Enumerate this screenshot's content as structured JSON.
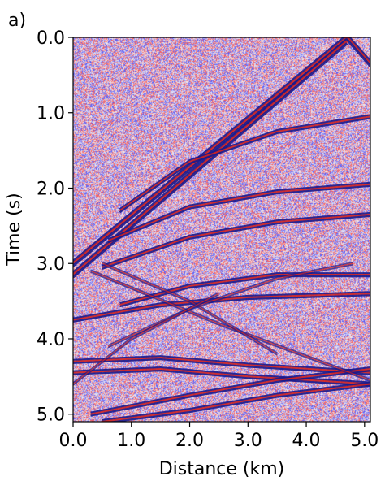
{
  "chart_data": {
    "type": "heatmap",
    "panel_label": "a)",
    "title": "",
    "xlabel": "Distance (km)",
    "ylabel": "Time (s)",
    "xlim": [
      0.0,
      5.1
    ],
    "ylim": [
      5.1,
      0.0
    ],
    "y_inverted": true,
    "x_ticks": [
      0.0,
      1.0,
      2.0,
      3.0,
      4.0,
      5.0
    ],
    "x_tick_labels": [
      "0.0",
      "1.0",
      "2.0",
      "3.0",
      "4.0",
      "5.0"
    ],
    "y_ticks": [
      0.0,
      1.0,
      2.0,
      3.0,
      4.0,
      5.0
    ],
    "y_tick_labels": [
      "0.0",
      "1.0",
      "2.0",
      "3.0",
      "4.0",
      "5.0"
    ],
    "colormap": "seismic",
    "colors": {
      "positive": "#cc2222",
      "negative": "#1a1a8c",
      "zero": "#f2eeee"
    },
    "events": [
      {
        "kind": "direct-arrival",
        "x": [
          0.0,
          4.7,
          5.1
        ],
        "y": [
          3.0,
          0.0,
          0.35
        ]
      },
      {
        "kind": "refraction",
        "x": [
          0.0,
          4.7
        ],
        "y": [
          3.15,
          0.05
        ]
      },
      {
        "kind": "reflection",
        "x": [
          0.8,
          2.0,
          3.5,
          5.1
        ],
        "y": [
          2.3,
          1.65,
          1.25,
          1.05
        ]
      },
      {
        "kind": "reflection",
        "x": [
          0.6,
          2.0,
          3.5,
          5.1
        ],
        "y": [
          2.7,
          2.25,
          2.05,
          1.95
        ]
      },
      {
        "kind": "reflection",
        "x": [
          0.5,
          2.0,
          3.5,
          5.1
        ],
        "y": [
          3.05,
          2.65,
          2.45,
          2.35
        ]
      },
      {
        "kind": "reflection",
        "x": [
          0.8,
          2.0,
          3.5,
          5.1
        ],
        "y": [
          3.55,
          3.3,
          3.15,
          3.15
        ]
      },
      {
        "kind": "reflection",
        "x": [
          0.0,
          1.5,
          3.0,
          5.1
        ],
        "y": [
          3.75,
          3.55,
          3.45,
          3.4
        ]
      },
      {
        "kind": "reflection",
        "x": [
          0.0,
          1.5,
          3.0,
          5.1
        ],
        "y": [
          4.3,
          4.25,
          4.35,
          4.45
        ]
      },
      {
        "kind": "reflection",
        "x": [
          0.0,
          1.5,
          3.0,
          5.1
        ],
        "y": [
          4.45,
          4.4,
          4.5,
          4.6
        ]
      },
      {
        "kind": "reflection",
        "x": [
          0.3,
          2.0,
          3.5,
          5.1
        ],
        "y": [
          5.0,
          4.75,
          4.55,
          4.4
        ]
      },
      {
        "kind": "reflection",
        "x": [
          0.5,
          2.0,
          3.5,
          5.1
        ],
        "y": [
          5.1,
          4.95,
          4.75,
          4.6
        ]
      },
      {
        "kind": "diffraction",
        "x": [
          0.3,
          2.5,
          5.1
        ],
        "y": [
          3.1,
          3.8,
          4.55
        ]
      },
      {
        "kind": "diffraction",
        "x": [
          0.5,
          2.0,
          3.5
        ],
        "y": [
          3.0,
          3.5,
          4.2
        ]
      },
      {
        "kind": "diffraction",
        "x": [
          0.6,
          2.0,
          3.5,
          4.8
        ],
        "y": [
          4.1,
          3.6,
          3.2,
          3.0
        ]
      },
      {
        "kind": "diffraction",
        "x": [
          0.0,
          1.0,
          2.5
        ],
        "y": [
          4.6,
          4.0,
          3.4
        ]
      }
    ]
  }
}
